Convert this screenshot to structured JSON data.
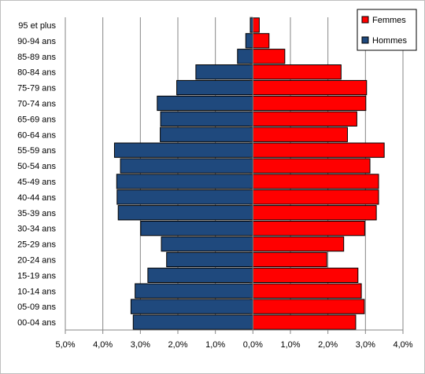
{
  "chart_data": {
    "type": "bar",
    "orientation": "horizontal",
    "subtype": "population-pyramid",
    "categories": [
      "95 et plus",
      "90-94 ans",
      "85-89 ans",
      "80-84 ans",
      "75-79 ans",
      "70-74 ans",
      "65-69 ans",
      "60-64 ans",
      "55-59 ans",
      "50-54 ans",
      "45-49 ans",
      "40-44 ans",
      "35-39 ans",
      "30-34 ans",
      "25-29 ans",
      "20-24 ans",
      "15-19 ans",
      "10-14 ans",
      "05-09 ans",
      "00-04 ans"
    ],
    "series": [
      {
        "name": "Femmes",
        "color": "#ff0000",
        "side": "right",
        "values": [
          0.17,
          0.43,
          0.85,
          2.35,
          3.03,
          3.01,
          2.77,
          2.52,
          3.5,
          3.12,
          3.35,
          3.35,
          3.29,
          2.98,
          2.42,
          1.97,
          2.8,
          2.89,
          2.97,
          2.74
        ]
      },
      {
        "name": "Hommes",
        "color": "#1f497d",
        "side": "left",
        "values": [
          0.07,
          0.19,
          0.41,
          1.52,
          2.03,
          2.55,
          2.46,
          2.47,
          3.69,
          3.53,
          3.63,
          3.62,
          3.59,
          2.99,
          2.44,
          2.3,
          2.8,
          3.14,
          3.25,
          3.19
        ]
      }
    ],
    "x_ticks": [
      "5,0%",
      "4,0%",
      "3,0%",
      "2,0%",
      "1,0%",
      "0,0%",
      "1,0%",
      "2,0%",
      "3,0%",
      "4,0%"
    ],
    "x_tick_values": [
      -5,
      -4,
      -3,
      -2,
      -1,
      0,
      1,
      2,
      3,
      4
    ],
    "xlim": [
      -5,
      4
    ],
    "x_unit": "%",
    "grid": "vertical",
    "legend_position": "top-right",
    "title": "",
    "xlabel": "",
    "ylabel": ""
  }
}
